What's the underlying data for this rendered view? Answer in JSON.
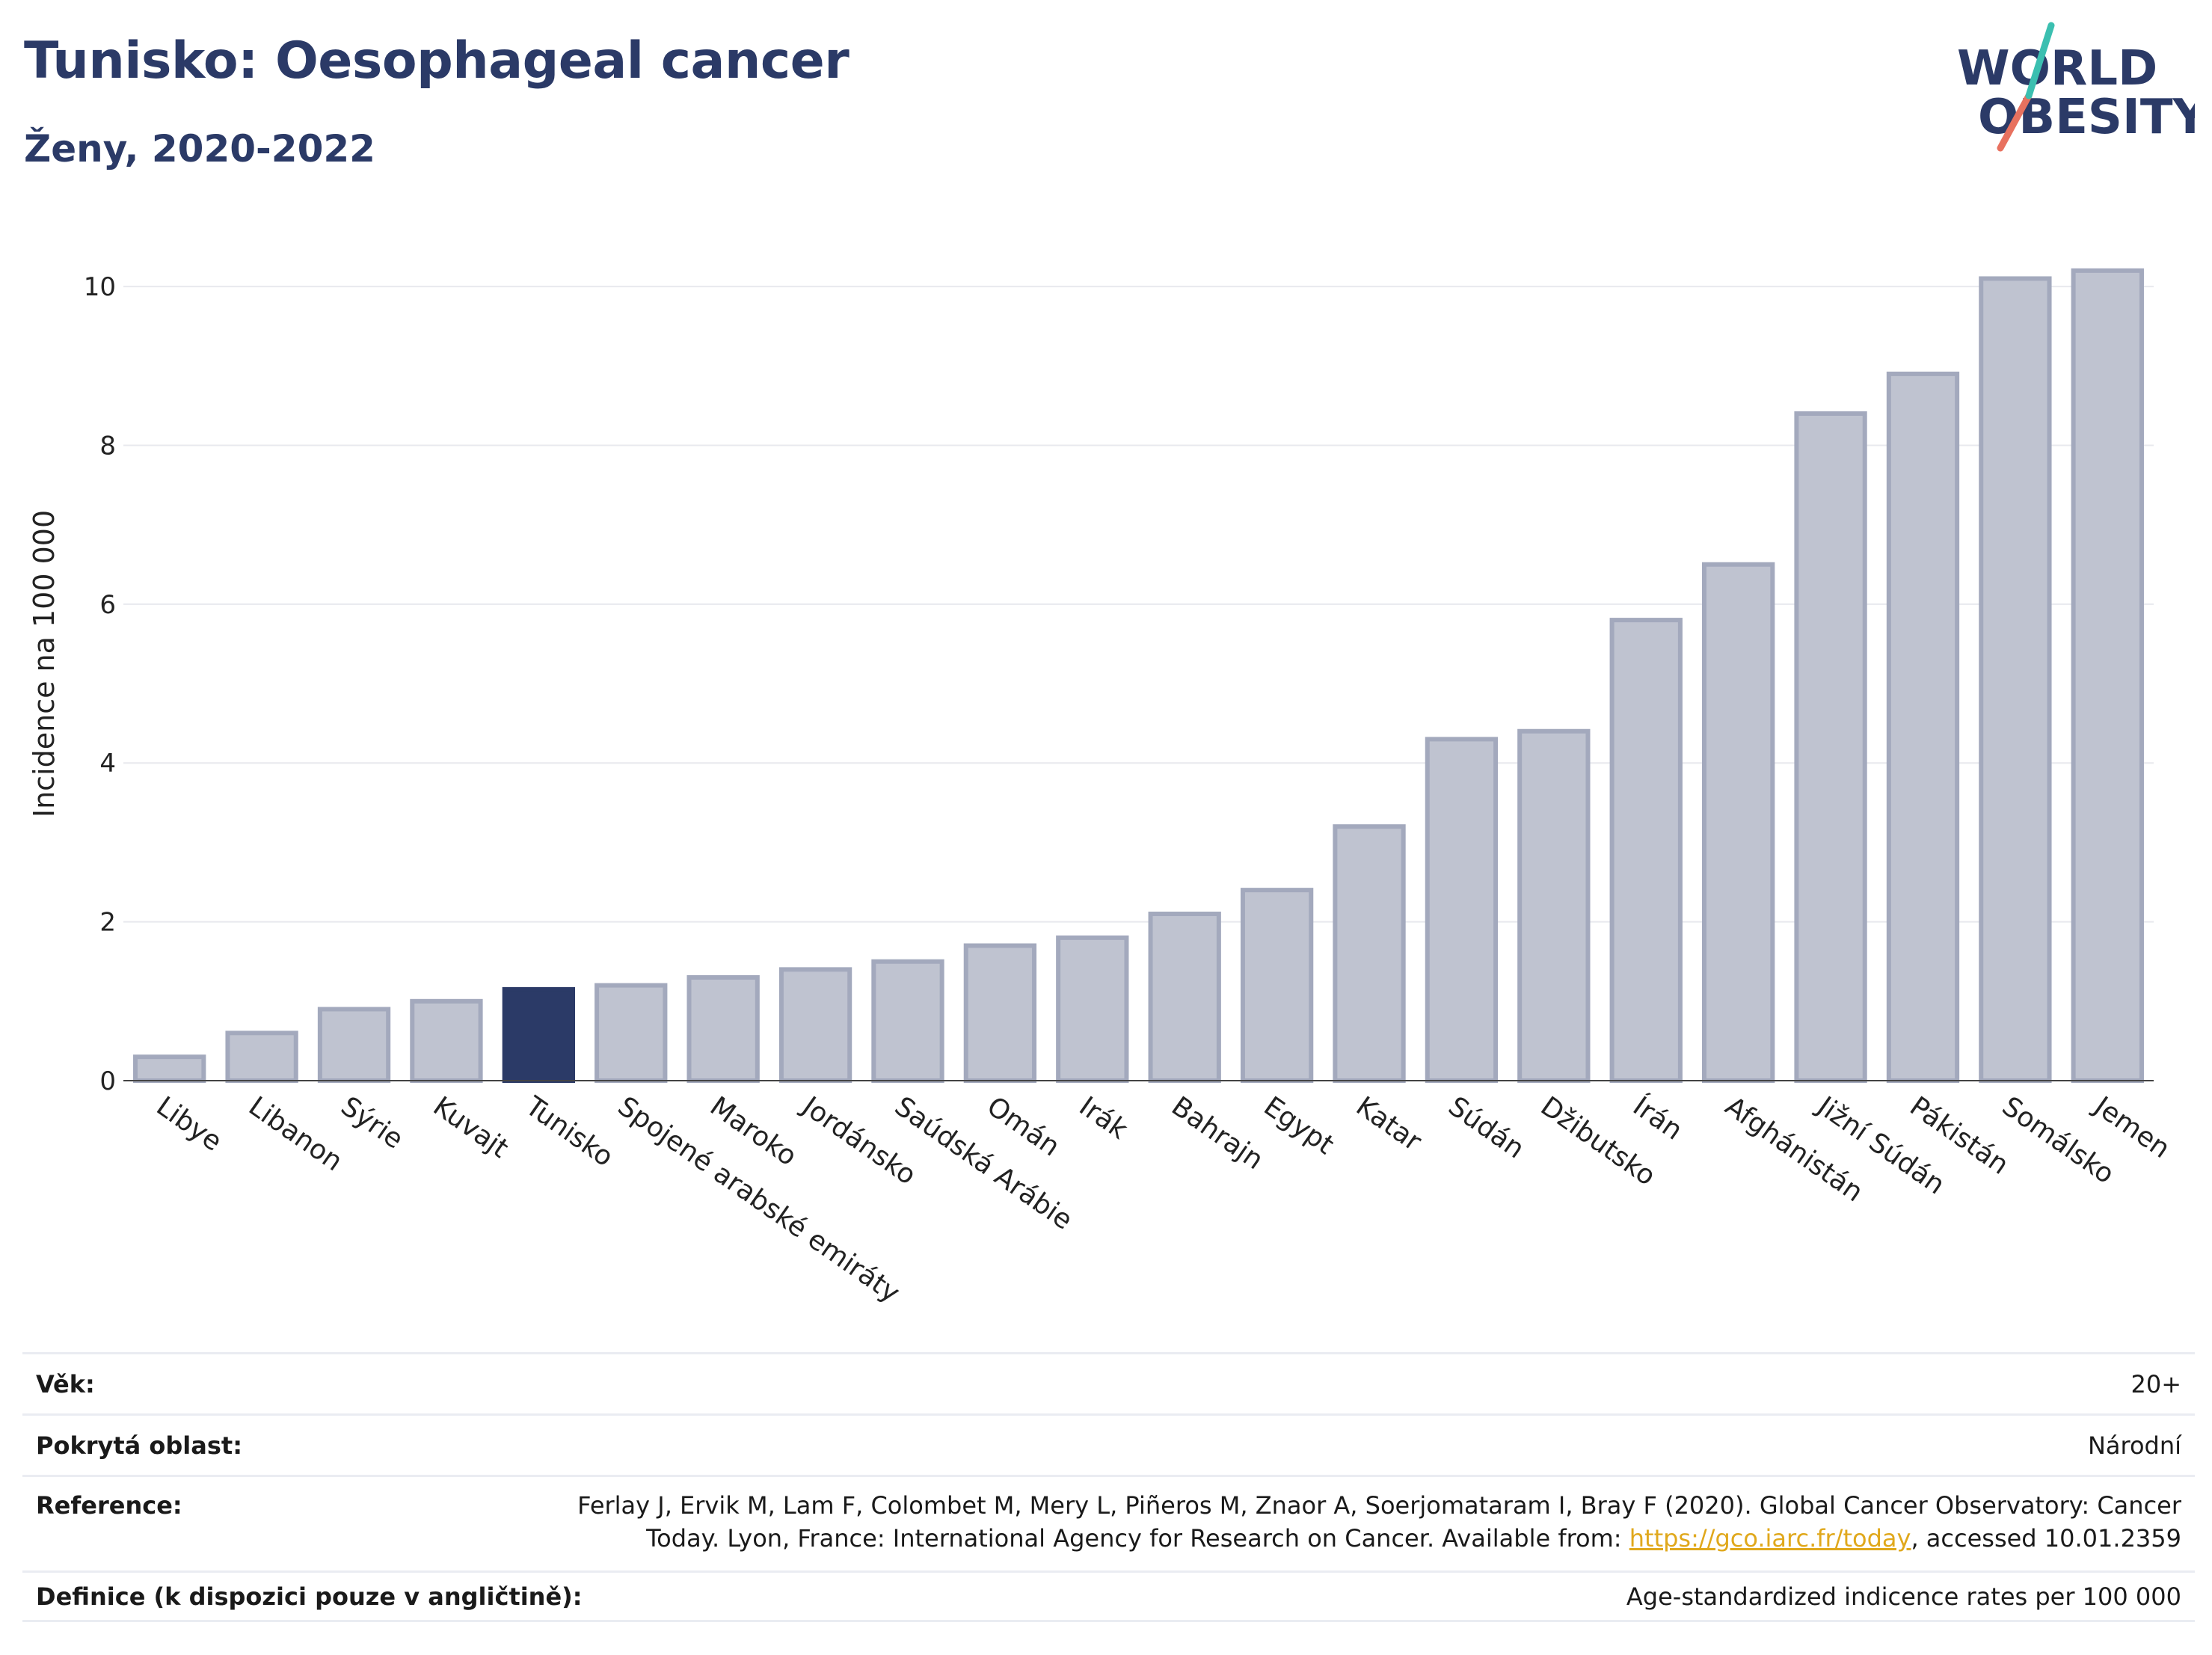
{
  "header": {
    "title": "Tunisko: Oesophageal cancer",
    "subtitle": "Ženy, 2020-2022",
    "logo_line1": "WORLD",
    "logo_line2": "OBESITY"
  },
  "chart_data": {
    "type": "bar",
    "ylabel": "Incidence na 100 000",
    "ylim": [
      0,
      10.5
    ],
    "yticks": [
      0,
      2,
      4,
      6,
      8,
      10
    ],
    "grid": true,
    "highlight_category": "Tunisko",
    "colors": {
      "bar": "#bfc3d0",
      "bar_edge": "#a3a9bd",
      "highlight": "#2b3a67"
    },
    "categories": [
      "Libye",
      "Libanon",
      "Sýrie",
      "Kuvajt",
      "Tunisko",
      "Spojené arabské emiráty",
      "Maroko",
      "Jordánsko",
      "Saúdská Arábie",
      "Omán",
      "Irák",
      "Bahrajn",
      "Egypt",
      "Katar",
      "Súdán",
      "Džibutsko",
      "Írán",
      "Afghánistán",
      "Jižní Súdán",
      "Pákistán",
      "Somálsko",
      "Jemen"
    ],
    "values": [
      0.3,
      0.6,
      0.9,
      1.0,
      1.15,
      1.2,
      1.3,
      1.4,
      1.5,
      1.7,
      1.8,
      2.1,
      2.4,
      3.2,
      4.3,
      4.4,
      5.8,
      6.5,
      8.4,
      8.9,
      10.1,
      10.2
    ]
  },
  "info": {
    "age_label": "Věk:",
    "age_value": "20+",
    "area_label": "Pokrytá oblast:",
    "area_value": "Národní",
    "ref_label": "Reference:",
    "ref_line1": "Ferlay J, Ervik M, Lam F, Colombet M, Mery L, Piñeros M, Znaor A, Soerjomataram I, Bray F (2020). Global Cancer Observatory: Cancer",
    "ref_line2_pre": "Today. Lyon, France: International Agency for Research on Cancer. Available from: ",
    "ref_link": "https://gco.iarc.fr/today",
    "ref_line2_post": ", accessed 10.01.2359",
    "def_label": "Definice (k dispozici pouze v angličtině):",
    "def_value": "Age-standardized indicence rates per 100 000"
  }
}
